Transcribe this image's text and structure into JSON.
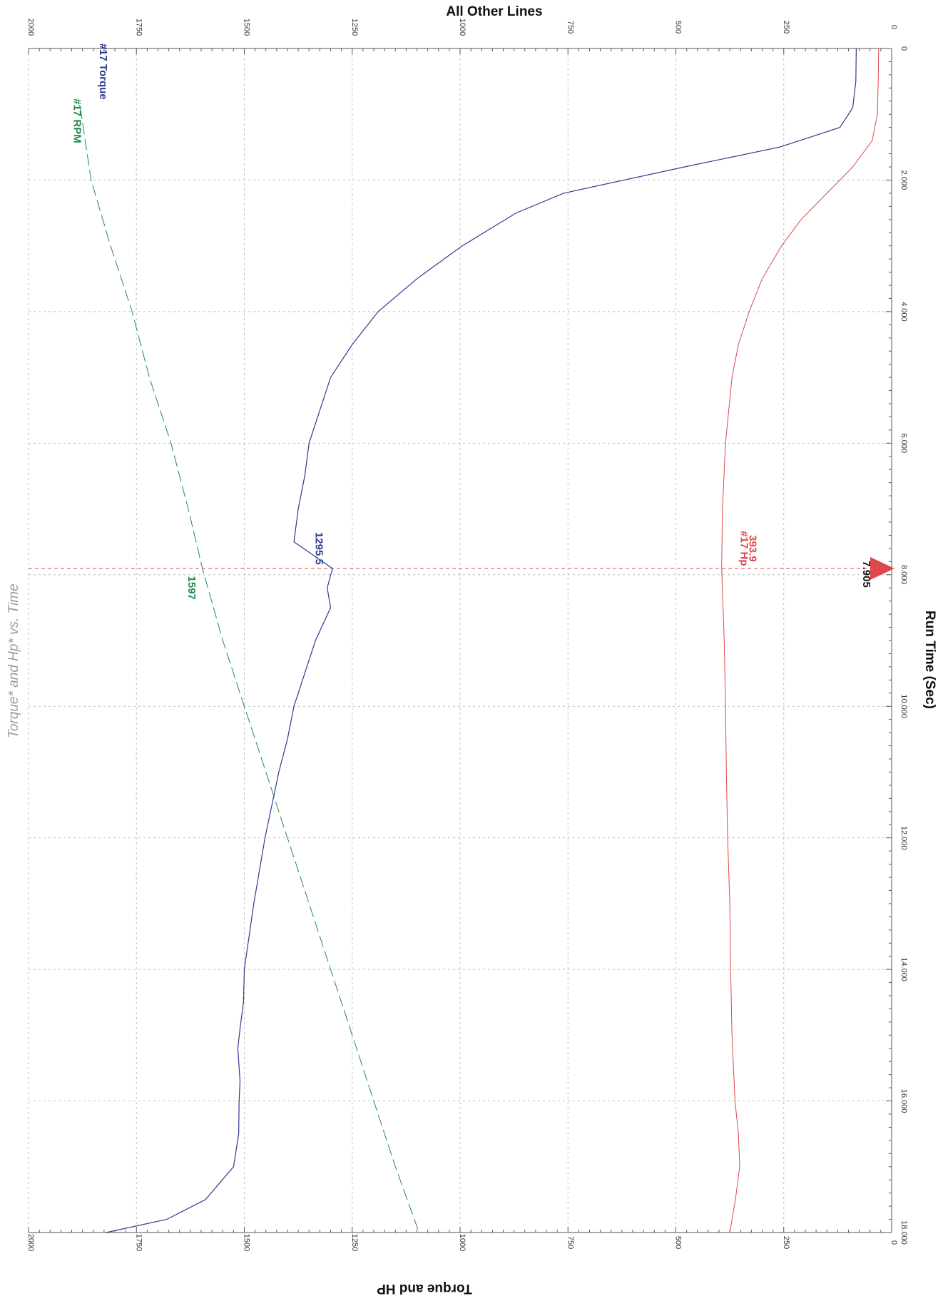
{
  "chart_data": {
    "type": "line",
    "title": "Torque* and Hp* vs. Time",
    "xlabel": "Run Time (Sec)",
    "ylabel_left": "Torque and HP",
    "ylabel_right": "All Other Lines",
    "xlim": [
      0,
      18
    ],
    "ylim": [
      0,
      2000
    ],
    "x_ticks": [
      "0",
      "2.000",
      "4.000",
      "6.000",
      "8.000",
      "10.000",
      "12.000",
      "14.000",
      "16.000",
      "18.000"
    ],
    "y_ticks_left": [
      "0",
      "250",
      "500",
      "750",
      "1000",
      "1250",
      "1500",
      "1750",
      "2000"
    ],
    "y_ticks_right": [
      "0",
      "250",
      "500",
      "750",
      "1000",
      "1250",
      "1500",
      "1750",
      "2000"
    ],
    "grid": true,
    "orientation": "rotated 90° clockwise",
    "colors": {
      "torque": "#2e3a8c",
      "hp": "#e0474c",
      "rpm": "#1e8a4e",
      "cursor": "#e0474c",
      "title": "#9a9aaa"
    },
    "cursor": {
      "x": 7.905,
      "label": "7.905"
    },
    "series": [
      {
        "key": "torque",
        "name": "#17 Torque",
        "cursor_value": "1295.5",
        "x": [
          0,
          0.5,
          0.9,
          1.2,
          1.5,
          1.8,
          2.0,
          2.2,
          2.5,
          3.0,
          3.5,
          4.0,
          4.5,
          5.0,
          5.5,
          6.0,
          6.5,
          7.0,
          7.5,
          7.905,
          8.2,
          8.5,
          9.0,
          9.5,
          10.0,
          10.5,
          11.0,
          12.0,
          13.0,
          14.0,
          14.5,
          14.9,
          15.2,
          15.7,
          16.0,
          16.5,
          17.0,
          17.5,
          17.8,
          18.0
        ],
        "y": [
          82,
          83,
          90,
          120,
          260,
          480,
          620,
          760,
          870,
          995,
          1100,
          1190,
          1250,
          1300,
          1325,
          1350,
          1360,
          1375,
          1385,
          1295.5,
          1308,
          1300,
          1335,
          1360,
          1385,
          1400,
          1420,
          1452,
          1478,
          1500,
          1502,
          1510,
          1515,
          1510,
          1512,
          1513,
          1525,
          1590,
          1680,
          1820
        ]
      },
      {
        "key": "hp",
        "name": "#17 Hp",
        "cursor_value": "393.9",
        "x": [
          0,
          0.5,
          1.0,
          1.4,
          1.8,
          2.2,
          2.6,
          3.0,
          3.5,
          4.0,
          4.5,
          5.0,
          6.0,
          7.0,
          7.905,
          9.0,
          10.0,
          11.0,
          12.0,
          13.0,
          14.0,
          15.0,
          16.0,
          16.5,
          17.0,
          17.5,
          18.0
        ],
        "y": [
          30,
          31,
          33,
          45,
          90,
          150,
          210,
          255,
          300,
          330,
          355,
          370,
          385,
          392,
          393.9,
          388,
          385,
          383,
          380,
          375,
          373,
          370,
          363,
          355,
          352,
          362,
          375
        ]
      },
      {
        "key": "rpm",
        "name": "#17 RPM",
        "cursor_value": "1597",
        "x": [
          0.9,
          2.0,
          3.0,
          4.0,
          5.0,
          6.0,
          7.0,
          7.905,
          9.0,
          10.0,
          11.0,
          12.0,
          13.0,
          14.0,
          15.0,
          16.0,
          17.0,
          18.0
        ],
        "y": [
          1880,
          1855,
          1810,
          1760,
          1720,
          1670,
          1630,
          1597,
          1550,
          1500,
          1450,
          1400,
          1350,
          1300,
          1250,
          1200,
          1150,
          1095
        ]
      }
    ]
  }
}
